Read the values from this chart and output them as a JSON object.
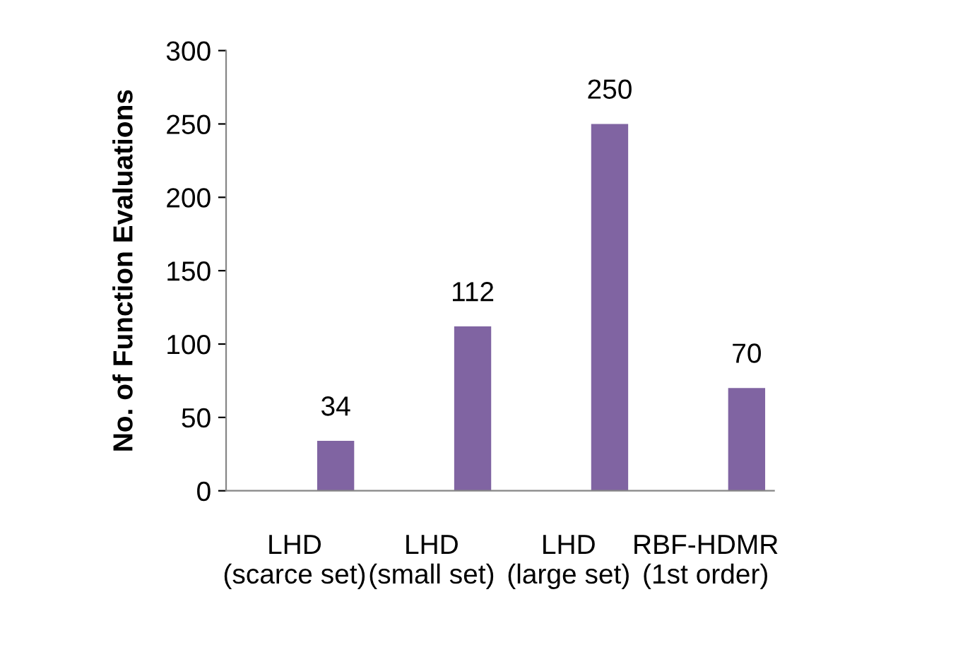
{
  "chart_data": {
    "type": "bar",
    "ylabel": "No. of Function Evaluations",
    "categories": [
      "LHD\n(scarce set)",
      "LHD\n(small set)",
      "LHD\n(large set)",
      "RBF-HDMR\n(1st order)"
    ],
    "values": [
      34,
      112,
      250,
      70
    ],
    "color": "#8064a2",
    "ylim": [
      0,
      300
    ],
    "yticks": [
      0,
      50,
      100,
      150,
      200,
      250,
      300
    ],
    "data_labels": true,
    "grid": false,
    "legend": false
  }
}
